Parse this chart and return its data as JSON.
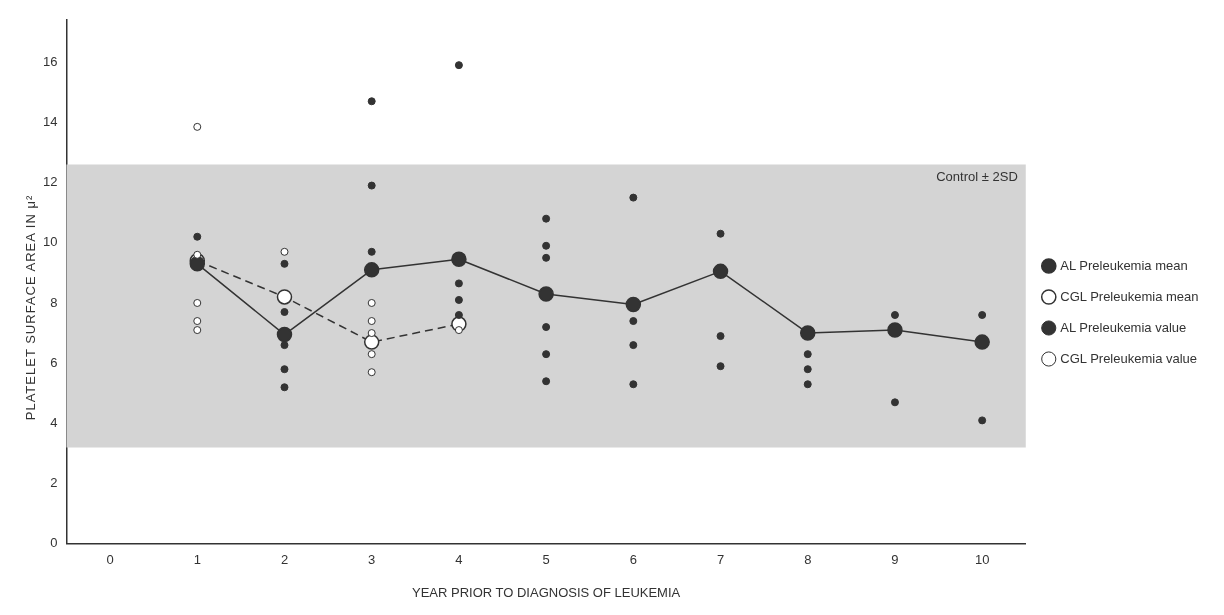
{
  "chart_data": {
    "type": "line",
    "xlabel": "YEAR PRIOR TO DIAGNOSIS OF LEUKEMIA",
    "ylabel": "PLATELET SURFACE AREA IN μ²",
    "categories": [
      "0",
      "1",
      "2",
      "3",
      "4",
      "5",
      "6",
      "7",
      "8",
      "9",
      "10"
    ],
    "ylim": [
      0,
      17.4
    ],
    "yticks": [
      0,
      2,
      4,
      6,
      8,
      10,
      12,
      14,
      16
    ],
    "grid": false,
    "legend": "right",
    "marker": "circle",
    "bands": [
      {
        "axis": "y",
        "from": 3.2,
        "to": 12.6,
        "label": "Control ± 2SD",
        "color": "#d4d4d4"
      }
    ],
    "series": [
      {
        "name": "AL Preleukemia mean",
        "color": "#333333",
        "line_style": "solid",
        "values": [
          null,
          9.3,
          6.95,
          9.1,
          9.45,
          8.3,
          7.95,
          9.05,
          7.0,
          7.1,
          6.7
        ]
      },
      {
        "name": "CGL Preleukemia mean",
        "color": "#ffffff",
        "line_style": "dashed",
        "values": [
          null,
          9.4,
          8.2,
          6.7,
          7.3,
          null,
          null,
          null,
          null,
          null,
          null
        ]
      },
      {
        "name": "AL Preleukemia value",
        "type": "scatter",
        "color": "#333333",
        "x": [
          "1",
          "2",
          "2",
          "2",
          "2",
          "2",
          "3",
          "3",
          "3",
          "4",
          "4",
          "4",
          "4",
          "5",
          "5",
          "5",
          "5",
          "5",
          "5",
          "6",
          "6",
          "6",
          "6",
          "7",
          "7",
          "7",
          "8",
          "8",
          "8",
          "9",
          "9",
          "10",
          "10"
        ],
        "values": [
          10.2,
          9.3,
          7.7,
          6.6,
          5.8,
          5.2,
          14.7,
          11.9,
          9.7,
          15.9,
          8.65,
          8.1,
          7.6,
          10.8,
          9.9,
          9.5,
          7.2,
          6.3,
          5.4,
          11.5,
          7.4,
          6.6,
          5.3,
          10.3,
          6.9,
          5.9,
          6.3,
          5.8,
          5.3,
          7.6,
          4.7,
          7.6,
          4.1
        ]
      },
      {
        "name": "CGL Preleukemia value",
        "type": "scatter",
        "color": "#ffffff",
        "x": [
          "1",
          "1",
          "1",
          "1",
          "1",
          "2",
          "3",
          "3",
          "3",
          "3",
          "3",
          "4"
        ],
        "values": [
          13.85,
          9.6,
          8.0,
          7.4,
          7.1,
          9.7,
          8.0,
          7.4,
          7.0,
          6.3,
          5.7,
          7.1
        ]
      }
    ]
  }
}
